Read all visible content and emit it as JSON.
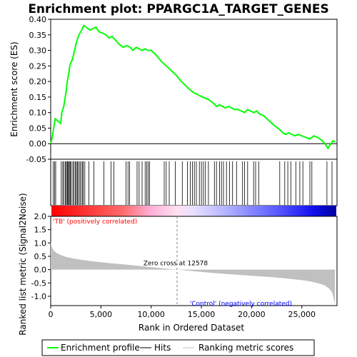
{
  "chart_data": {
    "type": "line",
    "title": "Enrichment plot: PPARGC1A_TARGET_GENES",
    "top_panel": {
      "ylabel": "Enrichment score (ES)",
      "ylim": [
        -0.05,
        0.4
      ],
      "yticks": [
        -0.05,
        0.0,
        0.05,
        0.1,
        0.15,
        0.2,
        0.25,
        0.3,
        0.35,
        0.4
      ],
      "ytick_labels": [
        "-0.05",
        "0.00",
        "0.05",
        "0.10",
        "0.15",
        "0.20",
        "0.25",
        "0.30",
        "0.35",
        "0.40"
      ],
      "series": [
        {
          "name": "Enrichment profile",
          "color": "#00ff00",
          "x": [
            0,
            150,
            300,
            450,
            1000,
            1100,
            1300,
            1400,
            1550,
            1650,
            1800,
            1900,
            2000,
            2150,
            2300,
            2450,
            2600,
            2750,
            2900,
            3000,
            3150,
            3300,
            3500,
            3700,
            3900,
            4200,
            4500,
            4800,
            5200,
            5500,
            5800,
            6100,
            6400,
            6800,
            7200,
            7600,
            7900,
            8200,
            8500,
            8800,
            9100,
            9400,
            9700,
            10000,
            10500,
            11000,
            11500,
            12000,
            12500,
            13000,
            13500,
            13800,
            14200,
            14500,
            14800,
            15100,
            15500,
            15800,
            16200,
            16500,
            16800,
            17100,
            17400,
            17700,
            18000,
            18300,
            18600,
            19000,
            19300,
            19600,
            19900,
            20200,
            20500,
            20800,
            21200,
            21700,
            22200,
            22800,
            23100,
            23400,
            23700,
            24000,
            24300,
            24600,
            25000,
            25400,
            25800,
            26200,
            26600,
            27000,
            27300,
            27600,
            27900,
            28100,
            28300
          ],
          "values": [
            0.0,
            0.02,
            0.05,
            0.08,
            0.065,
            0.1,
            0.12,
            0.14,
            0.17,
            0.2,
            0.225,
            0.25,
            0.26,
            0.27,
            0.29,
            0.31,
            0.33,
            0.345,
            0.355,
            0.36,
            0.37,
            0.38,
            0.375,
            0.37,
            0.365,
            0.37,
            0.375,
            0.36,
            0.355,
            0.35,
            0.34,
            0.345,
            0.335,
            0.32,
            0.31,
            0.315,
            0.31,
            0.3,
            0.31,
            0.305,
            0.3,
            0.305,
            0.3,
            0.3,
            0.285,
            0.265,
            0.25,
            0.235,
            0.22,
            0.2,
            0.185,
            0.175,
            0.165,
            0.16,
            0.155,
            0.15,
            0.145,
            0.14,
            0.13,
            0.12,
            0.125,
            0.12,
            0.115,
            0.12,
            0.115,
            0.11,
            0.11,
            0.105,
            0.1,
            0.11,
            0.105,
            0.1,
            0.105,
            0.095,
            0.09,
            0.075,
            0.06,
            0.045,
            0.035,
            0.03,
            0.035,
            0.03,
            0.025,
            0.03,
            0.025,
            0.02,
            0.015,
            0.025,
            0.02,
            0.01,
            0.0,
            -0.015,
            0.0,
            0.01,
            0.005
          ]
        }
      ]
    },
    "hits": {
      "name": "Hits",
      "x": [
        250,
        400,
        500,
        1050,
        1200,
        1300,
        1450,
        1550,
        1650,
        1700,
        1800,
        1850,
        1950,
        2050,
        2200,
        2300,
        2450,
        2550,
        2650,
        2750,
        2900,
        3000,
        3150,
        3250,
        3400,
        3800,
        4300,
        5300,
        6000,
        6300,
        7500,
        7700,
        7850,
        8600,
        8800,
        9100,
        9400,
        9550,
        9700,
        9850,
        11300,
        11500,
        11800,
        12400,
        13100,
        13600,
        13900,
        14100,
        14300,
        14500,
        14800,
        15000,
        15200,
        15400,
        15700,
        16300,
        16500,
        16800,
        17000,
        17200,
        17500,
        17800,
        18100,
        18500,
        19100,
        19300,
        19600,
        20200,
        20400,
        20700,
        22800,
        23300,
        23600,
        23900,
        24400,
        24800,
        25100,
        25800,
        26000,
        27500,
        28000
      ]
    },
    "rank_panel": {
      "ylabel": "Ranked list metric (Signal2Noise)",
      "ylim": [
        -1.35,
        2.0
      ],
      "yticks": [
        -1.0,
        -0.5,
        0.0,
        0.5,
        1.0,
        1.5,
        2.0
      ],
      "ytick_labels": [
        "-1.0",
        "-0.5",
        "0.0",
        "0.5",
        "1.0",
        "1.5",
        "2.0"
      ],
      "x": [
        0,
        100,
        300,
        600,
        1000,
        1500,
        2500,
        4000,
        6000,
        8000,
        10000,
        12578,
        14000,
        16000,
        18000,
        20000,
        22000,
        24000,
        25500,
        26500,
        27200,
        27700,
        28000,
        28150,
        28300
      ],
      "values": [
        1.05,
        0.85,
        0.72,
        0.62,
        0.55,
        0.48,
        0.4,
        0.32,
        0.24,
        0.17,
        0.09,
        0.0,
        -0.05,
        -0.12,
        -0.18,
        -0.23,
        -0.28,
        -0.35,
        -0.42,
        -0.5,
        -0.58,
        -0.7,
        -0.85,
        -1.05,
        -1.3
      ],
      "zero_cross_label": "Zero cross at 12578",
      "zero_cross_x": 12578,
      "pos_label": "'TB' (positively correlated)",
      "neg_label": "'Control' (negatively correlated)"
    },
    "xlabel": "Rank in Ordered Dataset",
    "xlim": [
      0,
      28500
    ],
    "xticks": [
      0,
      5000,
      10000,
      15000,
      20000,
      25000
    ],
    "xtick_labels": [
      "0",
      "5,000",
      "10,000",
      "15,000",
      "20,000",
      "25,000"
    ],
    "legend": {
      "placement": "bottom",
      "entries": [
        {
          "label": "Enrichment profile",
          "color": "#00ff00"
        },
        {
          "label": "Hits",
          "color": "#000000"
        },
        {
          "label": "Ranking metric scores",
          "color": "#c0c0c0"
        }
      ]
    },
    "colors": {
      "profile": "#00ff00",
      "hits": "#000000",
      "metric_fill": "#c0c0c0",
      "pos_label": "#ff0000",
      "neg_label": "#0000ff",
      "zero_line": "#808080"
    }
  }
}
